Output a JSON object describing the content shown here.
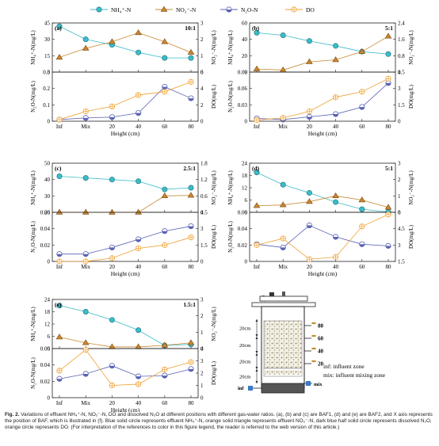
{
  "legend": [
    {
      "label": "NH₄⁺-N",
      "marker": "circle",
      "color": "#3bbcc9"
    },
    {
      "label": "NO₂⁻-N",
      "marker": "triangle",
      "color": "#c9862f"
    },
    {
      "label": "N₂O-N",
      "marker": "circle-half",
      "color": "#5a62b5"
    },
    {
      "label": "DO",
      "marker": "circle-cross",
      "color": "#f0a030"
    }
  ],
  "colors": {
    "nh4": "#3bbcc9",
    "no2": "#c9862f",
    "n2o": "#5a62b5",
    "do": "#f0a030"
  },
  "xlabel": "Height (cm)",
  "chart_data": [
    {
      "panel": "(a)",
      "ratio": "10:1",
      "type": "line",
      "categories": [
        "Inf",
        "Mix",
        "20",
        "40",
        "60",
        "80"
      ],
      "top": {
        "ylabel_left": "NH₄⁺-N(mg/L)",
        "ylim_left": [
          0,
          45
        ],
        "yticks_left": [
          0,
          15,
          30,
          45
        ],
        "ylabel_right": "NO₂⁻-N(mg/L)",
        "ylim_right": [
          0,
          3
        ],
        "yticks_right": [
          0,
          1,
          2,
          3
        ],
        "series": [
          {
            "name": "NH₄⁺-N",
            "axis": "left",
            "values": [
              42,
              30,
              25,
              18,
              13,
              13
            ]
          },
          {
            "name": "NO₂⁻-N",
            "axis": "right",
            "values": [
              0.9,
              1.45,
              1.85,
              2.4,
              1.85,
              1.2
            ]
          }
        ]
      },
      "bottom": {
        "ylabel_left": "N₂O-N(mg/L)",
        "ylim_left": [
          0,
          0.3
        ],
        "yticks_left": [
          0,
          0.1,
          0.2,
          0.3
        ],
        "ylabel_right": "DO(mg/L)",
        "ylim_right": [
          0,
          6
        ],
        "yticks_right": [
          0,
          2,
          4,
          6
        ],
        "series": [
          {
            "name": "N₂O-N",
            "axis": "left",
            "values": [
              0.01,
              0.02,
              0.025,
              0.05,
              0.21,
              0.14
            ]
          },
          {
            "name": "DO",
            "axis": "right",
            "values": [
              0.2,
              1.2,
              1.8,
              3.2,
              3.6,
              4.8
            ]
          }
        ]
      }
    },
    {
      "panel": "(b)",
      "ratio": "5:1",
      "type": "line",
      "categories": [
        "Inf",
        "Mix",
        "20",
        "40",
        "60",
        "80"
      ],
      "top": {
        "ylabel_left": "NH₄⁺-N(mg/L)",
        "ylim_left": [
          0,
          60
        ],
        "yticks_left": [
          0,
          20,
          40,
          60
        ],
        "ylabel_right": "NO₂⁻-N(mg/L)",
        "ylim_right": [
          0,
          2.4
        ],
        "yticks_right": [
          0,
          0.8,
          1.6,
          2.4
        ],
        "series": [
          {
            "name": "NH₄⁺-N",
            "axis": "left",
            "values": [
              48,
              45,
              38,
              32,
              25,
              22
            ]
          },
          {
            "name": "NO₂⁻-N",
            "axis": "right",
            "values": [
              0.15,
              0.1,
              0.5,
              0.6,
              1.0,
              1.75
            ]
          }
        ]
      },
      "bottom": {
        "ylabel_left": "N₂O-N(mg/L)",
        "ylim_left": [
          0,
          0.09
        ],
        "yticks_left": [
          0,
          0.03,
          0.06,
          0.09
        ],
        "ylabel_right": "DO(mg/L)",
        "ylim_right": [
          0,
          4.5
        ],
        "yticks_right": [
          0,
          1.5,
          3,
          4.5
        ],
        "series": [
          {
            "name": "N₂O-N",
            "axis": "left",
            "values": [
              0.005,
              0.003,
              0.008,
              0.013,
              0.026,
              0.07
            ]
          },
          {
            "name": "DO",
            "axis": "right",
            "values": [
              0.1,
              0.3,
              0.9,
              2.2,
              2.7,
              3.9
            ]
          }
        ]
      }
    },
    {
      "panel": "(c)",
      "ratio": "2.5:1",
      "type": "line",
      "categories": [
        "Inf",
        "Mix",
        "20",
        "40",
        "60",
        "80"
      ],
      "top": {
        "ylabel_left": "NH₄⁺-N(mg/L)",
        "ylim_left": [
          20,
          50
        ],
        "yticks_left": [
          20,
          30,
          40,
          50
        ],
        "ylabel_right": "NO₂⁻-N(mg/L)",
        "ylim_right": [
          0,
          1.8
        ],
        "yticks_right": [
          0,
          0.6,
          1.2,
          1.8
        ],
        "series": [
          {
            "name": "NH₄⁺-N",
            "axis": "left",
            "values": [
              42,
              41,
              40,
              39,
              34,
              35
            ]
          },
          {
            "name": "NO₂⁻-N",
            "axis": "right",
            "values": [
              0,
              0,
              0,
              0,
              0.6,
              0.62
            ]
          }
        ]
      },
      "bottom": {
        "ylabel_left": "N₂O-N(mg/L)",
        "ylim_left": [
          0,
          0.06
        ],
        "yticks_left": [
          0,
          0.02,
          0.04,
          0.06
        ],
        "ylabel_right": "DO(mg/L)",
        "ylim_right": [
          0,
          4.5
        ],
        "yticks_right": [
          0,
          1.5,
          3,
          4.5
        ],
        "series": [
          {
            "name": "N₂O-N",
            "axis": "left",
            "values": [
              0.009,
              0.009,
              0.017,
              0.027,
              0.037,
              0.043
            ]
          },
          {
            "name": "DO",
            "axis": "right",
            "values": [
              0,
              0,
              0.3,
              1.2,
              1.5,
              2.2
            ]
          }
        ]
      }
    },
    {
      "panel": "(d)",
      "ratio": "5:1",
      "type": "line",
      "categories": [
        "Inf",
        "Mix",
        "20",
        "40",
        "60",
        "80"
      ],
      "top": {
        "ylabel_left": "NH₄⁺-N(mg/L)",
        "ylim_left": [
          0,
          24
        ],
        "yticks_left": [
          0,
          6,
          12,
          18,
          24
        ],
        "ylabel_right": "NO₂⁻-N(mg/L)",
        "ylim_right": [
          0,
          3
        ],
        "yticks_right": [
          0,
          1,
          2,
          3
        ],
        "series": [
          {
            "name": "NH₄⁺-N",
            "axis": "left",
            "values": [
              19.5,
              13.5,
              9.5,
              5,
              1.5,
              0.2
            ]
          },
          {
            "name": "NO₂⁻-N",
            "axis": "right",
            "values": [
              0.4,
              0.45,
              0.65,
              1.0,
              0.75,
              0.3
            ]
          }
        ]
      },
      "bottom": {
        "ylabel_left": "N₂O-N(mg/L)",
        "ylim_left": [
          0,
          0.06
        ],
        "yticks_left": [
          0,
          0.02,
          0.04,
          0.06
        ],
        "ylabel_right": "DO(mg/L)",
        "ylim_right": [
          1.5,
          6
        ],
        "yticks_right": [
          1.5,
          3,
          4.5,
          6
        ],
        "series": [
          {
            "name": "N₂O-N",
            "axis": "left",
            "values": [
              0.021,
              0.017,
              0.044,
              0.03,
              0.021,
              0.019
            ]
          },
          {
            "name": "DO",
            "axis": "right",
            "values": [
              3.0,
              3.6,
              1.7,
              1.9,
              4.7,
              5.8
            ]
          }
        ]
      }
    },
    {
      "panel": "(e)",
      "ratio": "1.5:1",
      "type": "line",
      "categories": [
        "Inf",
        "Mix",
        "20",
        "40",
        "60",
        "80"
      ],
      "top": {
        "ylabel_left": "NH₄⁺-N(mg/L)",
        "ylim_left": [
          0,
          24
        ],
        "yticks_left": [
          0,
          6,
          12,
          18,
          24
        ],
        "ylabel_right": "NO₂⁻-N(mg/L)",
        "ylim_right": [
          0,
          3
        ],
        "yticks_right": [
          0,
          1,
          2,
          3
        ],
        "series": [
          {
            "name": "NH₄⁺-N",
            "axis": "left",
            "values": [
              21,
              18,
              14,
              9,
              1.5,
              2
            ]
          },
          {
            "name": "NO₂⁻-N",
            "axis": "right",
            "values": [
              0.7,
              0.35,
              0.1,
              0.1,
              0.2,
              0.35
            ]
          }
        ]
      },
      "bottom": {
        "ylabel_left": "N₂O-N(mg/L)",
        "ylim_left": [
          0,
          0.06
        ],
        "yticks_left": [
          0,
          0.02,
          0.04,
          0.06
        ],
        "ylabel_right": "DO(mg/L)",
        "ylim_right": [
          0,
          4
        ],
        "yticks_right": [
          0,
          1,
          2,
          3,
          4
        ],
        "series": [
          {
            "name": "N₂O-N",
            "axis": "left",
            "values": [
              0.023,
              0.029,
              0.039,
              0.026,
              0.027,
              0.035
            ]
          },
          {
            "name": "DO",
            "axis": "right",
            "values": [
              2.2,
              3.9,
              1.0,
              1.1,
              2.3,
              2.9
            ]
          }
        ]
      }
    }
  ],
  "diagram": {
    "panel": "(f)",
    "heights": [
      "80",
      "60",
      "40",
      "20"
    ],
    "segments": [
      "20cm",
      "20cm",
      "20cm",
      "20cm"
    ],
    "inf_label": "inf",
    "mix_label": "mix",
    "notes": [
      "inf: influent zone",
      "mix: influent mixing zone"
    ]
  },
  "caption": {
    "label": "Fig. 2.",
    "text": "Variations of effluent NH₄⁺-N, NO₂⁻-N, DO and dissolved N₂O at different positions with different gas-water ratios. (a), (b) and (c) are BAF1, (d) and (e) are BAF2, and X axis represents the position of BAF, which is illustrated in (f). Blue solid circle represents effluent NH₄⁺-N, orange solid triangle represents effluent NO₂⁻-N, dark blue half solid circle represents dissolved N₂O, orange circle represents DO. (For interpretation of the references to color in this figure legend, the reader is referred to the web version of this article.)"
  }
}
